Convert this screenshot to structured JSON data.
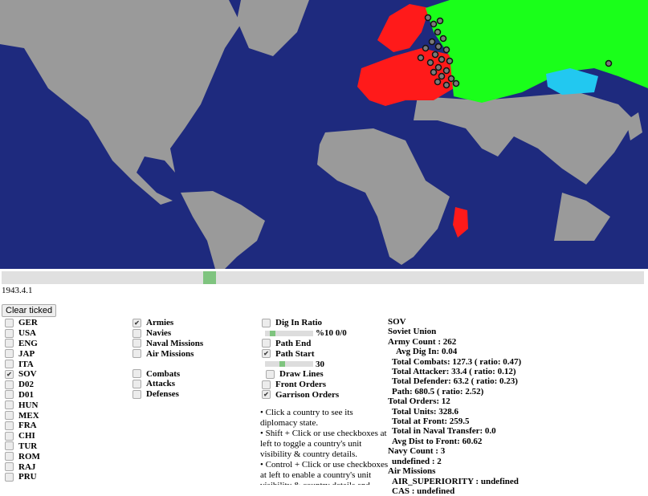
{
  "map": {
    "ocean": "#1e2a7e",
    "land": "#9a9a9a",
    "axis_color": "#ff1a1a",
    "sov_color": "#1aff1a",
    "mongolia_color": "#22c8f0"
  },
  "timeline": {
    "position_percent": 32,
    "date": "1943.4.1"
  },
  "clear_button": "Clear ticked",
  "countries": [
    {
      "code": "GER",
      "checked": false
    },
    {
      "code": "USA",
      "checked": false
    },
    {
      "code": "ENG",
      "checked": false
    },
    {
      "code": "JAP",
      "checked": false
    },
    {
      "code": "ITA",
      "checked": false
    },
    {
      "code": "SOV",
      "checked": true
    },
    {
      "code": "D02",
      "checked": false
    },
    {
      "code": "D01",
      "checked": false
    },
    {
      "code": "HUN",
      "checked": false
    },
    {
      "code": "MEX",
      "checked": false
    },
    {
      "code": "FRA",
      "checked": false
    },
    {
      "code": "CHI",
      "checked": false
    },
    {
      "code": "TUR",
      "checked": false
    },
    {
      "code": "ROM",
      "checked": false
    },
    {
      "code": "RAJ",
      "checked": false
    },
    {
      "code": "PRU",
      "checked": false
    }
  ],
  "layers": [
    {
      "label": "Armies",
      "checked": true
    },
    {
      "label": "Navies",
      "checked": false
    },
    {
      "label": "Naval Missions",
      "checked": false
    },
    {
      "label": "Air Missions",
      "checked": false
    }
  ],
  "events": [
    {
      "label": "Combats",
      "checked": false
    },
    {
      "label": "Attacks",
      "checked": false
    },
    {
      "label": "Defenses",
      "checked": false
    }
  ],
  "options": {
    "dig_in": "Dig In Ratio",
    "dig_in_checked": false,
    "dig_in_value": "%10 0/0",
    "dig_in_level": 0.1,
    "path_end": "Path End",
    "path_end_checked": false,
    "path_start": "Path Start",
    "path_start_checked": true,
    "path_value": "30",
    "path_level": 0.3,
    "draw_lines": "Draw Lines",
    "draw_lines_checked": false,
    "front_orders": "Front Orders",
    "front_checked": false,
    "garrison_orders": "Garrison Orders",
    "garrison_checked": true
  },
  "help": [
    "• Click a country to see its diplomacy state.",
    "• Shift + Click or use checkboxes at left to toggle a country's unit visibility & country details.",
    "• Control + Click or use checkboxes at left to enable a country's unit visibility & country details and disable ..."
  ],
  "info": {
    "lines": [
      {
        "t": "SOV",
        "i": 0
      },
      {
        "t": "Soviet Union",
        "i": 0
      },
      {
        "t": "Army Count : 262",
        "i": 0
      },
      {
        "t": "Avg Dig In: 0.04",
        "i": 2
      },
      {
        "t": "Total Combats: 127.3 ( ratio: 0.47)",
        "i": 1
      },
      {
        "t": "Total Attacker: 33.4 ( ratio: 0.12)",
        "i": 1
      },
      {
        "t": "Total Defender: 63.2 ( ratio: 0.23)",
        "i": 1
      },
      {
        "t": "Path: 680.5 ( ratio: 2.52)",
        "i": 1
      },
      {
        "t": "Total Orders: 12",
        "i": 0
      },
      {
        "t": "Total Units: 328.6",
        "i": 1
      },
      {
        "t": "Total at Front: 259.5",
        "i": 1
      },
      {
        "t": "Total in Naval Transfer: 0.0",
        "i": 1
      },
      {
        "t": "Avg Dist to Front: 60.62",
        "i": 1
      },
      {
        "t": "Navy Count : 3",
        "i": 0
      },
      {
        "t": "undefined : 2",
        "i": 1
      },
      {
        "t": "Air Missions",
        "i": 0
      },
      {
        "t": "AIR_SUPERIORITY : undefined",
        "i": 1
      },
      {
        "t": "CAS : undefined",
        "i": 1
      }
    ]
  }
}
